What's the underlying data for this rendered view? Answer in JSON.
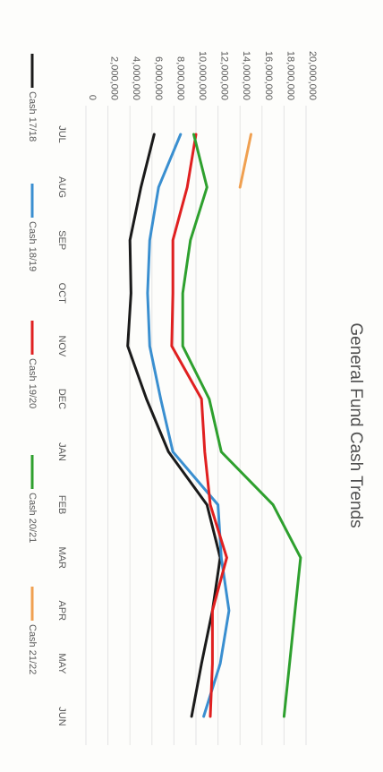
{
  "chart_data": {
    "type": "line",
    "title": "General Fund Cash Trends",
    "categories": [
      "JUL",
      "AUG",
      "SEP",
      "OCT",
      "NOV",
      "DEC",
      "JAN",
      "FEB",
      "MAR",
      "APR",
      "MAY",
      "JUN"
    ],
    "ylim": [
      0,
      20000000
    ],
    "y_ticks": [
      "0",
      "2,000,000",
      "4,000,000",
      "6,000,000",
      "8,000,000",
      "10,000,000",
      "12,000,000",
      "14,000,000",
      "16,000,000",
      "18,000,000",
      "20,000,000"
    ],
    "grid": true,
    "legend_position": "bottom",
    "orientation": "rotated-90-clockwise",
    "series": [
      {
        "name": "Cash 17/18",
        "color": "#1a1a1a",
        "values": [
          6200000,
          5000000,
          4000000,
          4100000,
          3800000,
          5500000,
          7500000,
          11000000,
          12200000,
          11500000,
          10500000,
          9600000
        ]
      },
      {
        "name": "Cash 18/19",
        "color": "#3a8fd0",
        "values": [
          8600000,
          6600000,
          5800000,
          5600000,
          5800000,
          6800000,
          7900000,
          12000000,
          12300000,
          13000000,
          12200000,
          10700000
        ]
      },
      {
        "name": "Cash 19/20",
        "color": "#e02020",
        "values": [
          10000000,
          9200000,
          7900000,
          7900000,
          7800000,
          10500000,
          10800000,
          11300000,
          12800000,
          11500000,
          11500000,
          11300000
        ]
      },
      {
        "name": "Cash 20/21",
        "color": "#2ea02e",
        "values": [
          9800000,
          11000000,
          9500000,
          8800000,
          8800000,
          11200000,
          12300000,
          17000000,
          19500000,
          19000000,
          18500000,
          18000000
        ]
      },
      {
        "name": "Cash 21/22",
        "color": "#f0a050",
        "values": [
          15000000,
          14000000,
          null,
          null,
          null,
          null,
          null,
          null,
          null,
          null,
          null,
          null
        ]
      }
    ]
  }
}
